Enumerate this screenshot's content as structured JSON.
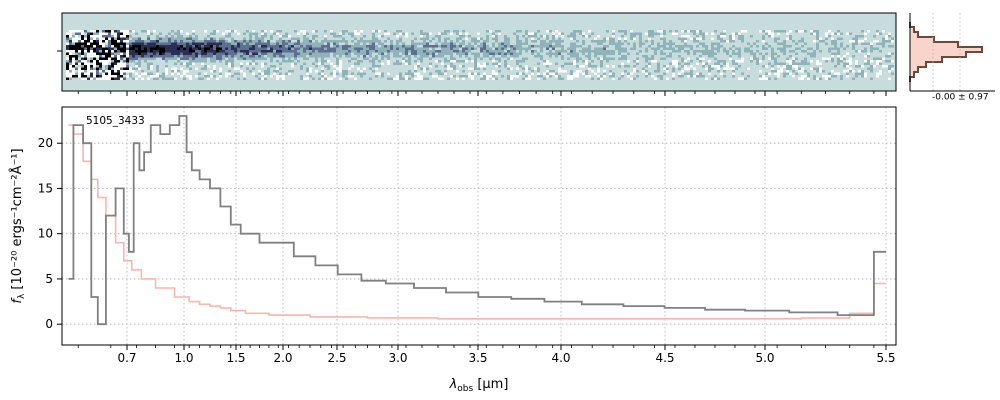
{
  "chart_data": [
    {
      "type": "heatmap",
      "panel": "2d-spectrum",
      "description_free": true,
      "colormap": [
        "#ffffff",
        "#c7dcdc",
        "#8fb3b8",
        "#5f6f8f",
        "#2b2f55",
        "#000000"
      ],
      "background_color": "#c7dcdc",
      "x_tick_labels": [],
      "y_tick_labels": []
    },
    {
      "type": "step",
      "panel": "profile-histogram",
      "annotation": "-0.00 ± 0.97",
      "profile_x": [
        0.0,
        0.05,
        0.1,
        0.3,
        0.6,
        0.9,
        0.7,
        0.4,
        0.2,
        0.1,
        0.05,
        0.0
      ],
      "profile_y": [
        -6,
        -5,
        -4,
        -3,
        -2,
        -1,
        0,
        1,
        2,
        3,
        4,
        5
      ],
      "line_color": "#6b4a3c",
      "fill_color": "#f7c9bd"
    },
    {
      "type": "line",
      "panel": "1d-spectrum",
      "label": "5105_3433",
      "xlabel_main": "λ",
      "xlabel_sub": "obs",
      "xlabel_unit": " [μm]",
      "ylabel_main": "f",
      "ylabel_sub": "λ",
      "ylabel_unit": " [10⁻²⁰ ergs⁻¹cm⁻²Å⁻¹]",
      "x_ticks": [
        0.7,
        1.0,
        1.5,
        2.0,
        2.5,
        3.0,
        3.5,
        4.0,
        4.5,
        5.0,
        5.5
      ],
      "x_tick_labels": [
        "0.7",
        "1.0",
        "1.5",
        "2.0",
        "2.5",
        "3.0",
        "3.5",
        "4.0",
        "4.5",
        "5.0",
        "5.5"
      ],
      "y_ticks": [
        0,
        5,
        10,
        15,
        20
      ],
      "y_tick_labels": [
        "0",
        "5",
        "10",
        "15",
        "20"
      ],
      "ylim": [
        -2.3,
        24
      ],
      "grid": true,
      "series": [
        {
          "color": "#808080",
          "x": [
            0.52,
            0.55,
            0.58,
            0.6,
            0.62,
            0.65,
            0.68,
            0.7,
            0.72,
            0.75,
            0.78,
            0.8,
            0.85,
            0.9,
            0.95,
            1.0,
            1.05,
            1.1,
            1.2,
            1.3,
            1.4,
            1.5,
            1.6,
            1.7,
            1.8,
            1.9,
            2.0,
            2.2,
            2.4,
            2.6,
            2.8,
            3.0,
            3.2,
            3.4,
            3.6,
            3.8,
            4.0,
            4.2,
            4.4,
            4.6,
            4.8,
            5.0,
            5.2,
            5.4,
            5.5
          ],
          "y": [
            5,
            22,
            20,
            3,
            0,
            12,
            15,
            10,
            8,
            20,
            17,
            19,
            22,
            21,
            22,
            23,
            19,
            17,
            16,
            15,
            13,
            11,
            10,
            10,
            9,
            9,
            9,
            7.5,
            6.5,
            5.5,
            4.8,
            4.5,
            4.0,
            3.5,
            3.0,
            2.8,
            2.5,
            2.2,
            2.0,
            1.8,
            1.6,
            1.5,
            1.3,
            1.0,
            8
          ]
        },
        {
          "color": "#f5b7b1",
          "x": [
            0.52,
            0.55,
            0.58,
            0.6,
            0.62,
            0.65,
            0.68,
            0.7,
            0.75,
            0.8,
            0.9,
            1.0,
            1.1,
            1.2,
            1.3,
            1.4,
            1.5,
            1.7,
            2.0,
            2.5,
            3.0,
            3.5,
            4.0,
            4.5,
            5.0,
            5.3,
            5.4,
            5.5
          ],
          "y": [
            22,
            21,
            18,
            16,
            14,
            12,
            9,
            7,
            6,
            5,
            4,
            3,
            2.5,
            2.2,
            2.0,
            1.8,
            1.5,
            1.2,
            1.0,
            0.8,
            0.7,
            0.6,
            0.6,
            0.6,
            0.6,
            0.7,
            1.2,
            4.5
          ]
        }
      ]
    }
  ]
}
